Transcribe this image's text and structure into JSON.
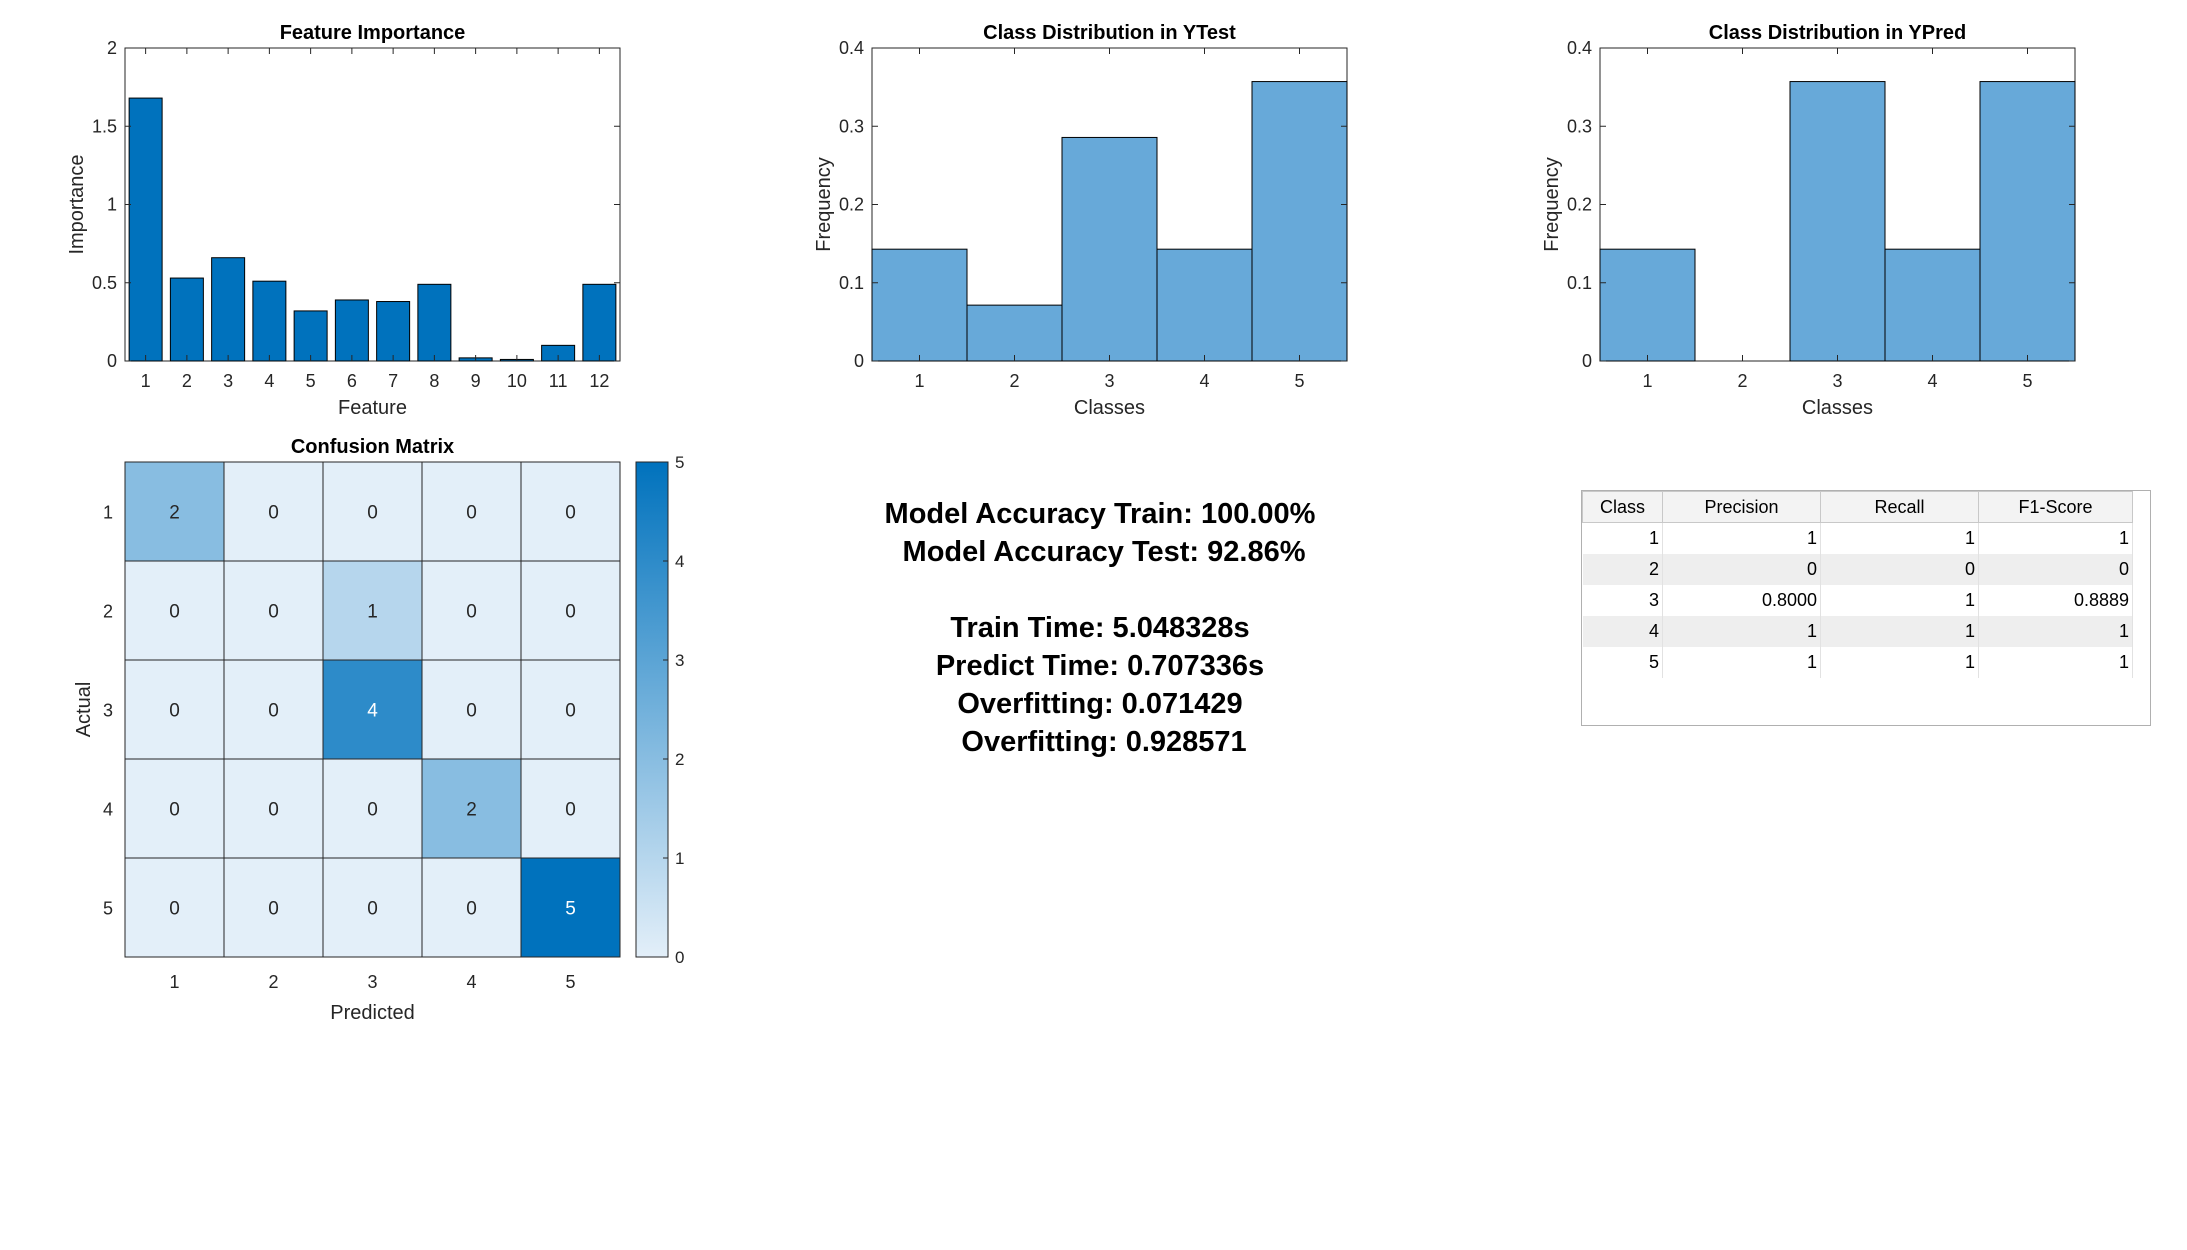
{
  "chart_data": [
    {
      "type": "bar",
      "title": "Feature Importance",
      "xlabel": "Feature",
      "ylabel": "Importance",
      "categories": [
        "1",
        "2",
        "3",
        "4",
        "5",
        "6",
        "7",
        "8",
        "9",
        "10",
        "11",
        "12"
      ],
      "values": [
        1.68,
        0.53,
        0.66,
        0.51,
        0.32,
        0.39,
        0.38,
        0.49,
        0.02,
        0.01,
        0.1,
        0.49
      ],
      "ylim": [
        0,
        2
      ],
      "yticks": [
        "0",
        "0.5",
        "1",
        "1.5",
        "2"
      ],
      "grid": false,
      "color": "#0072BD"
    },
    {
      "type": "bar",
      "title": "Class Distribution in YTest",
      "xlabel": "Classes",
      "ylabel": "Frequency",
      "categories": [
        "1",
        "2",
        "3",
        "4",
        "5"
      ],
      "values": [
        0.1429,
        0.0714,
        0.2857,
        0.1429,
        0.3571
      ],
      "ylim": [
        0,
        0.4
      ],
      "yticks": [
        "0",
        "0.1",
        "0.2",
        "0.3",
        "0.4"
      ],
      "grid": false,
      "color": "#67A9D9"
    },
    {
      "type": "bar",
      "title": "Class Distribution in YPred",
      "xlabel": "Classes",
      "ylabel": "Frequency",
      "categories": [
        "1",
        "2",
        "3",
        "4",
        "5"
      ],
      "values": [
        0.1429,
        0,
        0.3571,
        0.1429,
        0.3571
      ],
      "ylim": [
        0,
        0.4
      ],
      "yticks": [
        "0",
        "0.1",
        "0.2",
        "0.3",
        "0.4"
      ],
      "grid": false,
      "color": "#67A9D9"
    },
    {
      "type": "heatmap",
      "title": "Confusion Matrix",
      "xlabel": "Predicted",
      "ylabel": "Actual",
      "x": [
        "1",
        "2",
        "3",
        "4",
        "5"
      ],
      "y": [
        "1",
        "2",
        "3",
        "4",
        "5"
      ],
      "values": [
        [
          2,
          0,
          0,
          0,
          0
        ],
        [
          0,
          0,
          1,
          0,
          0
        ],
        [
          0,
          0,
          4,
          0,
          0
        ],
        [
          0,
          0,
          0,
          2,
          0
        ],
        [
          0,
          0,
          0,
          0,
          5
        ]
      ],
      "colorbar": {
        "range": [
          0,
          5
        ],
        "ticks": [
          "0",
          "1",
          "2",
          "3",
          "4",
          "5"
        ]
      },
      "colormap": [
        "#E3EFF9",
        "#0072BD"
      ]
    }
  ],
  "metrics": {
    "accuracy_train": "Model Accuracy Train: 100.00%",
    "accuracy_test": " Model Accuracy Test: 92.86%",
    "train_time": "Train Time: 5.048328s",
    "predict_time": "Predict Time: 0.707336s",
    "overfitting_1": "Overfitting: 0.071429",
    "overfitting_2": " Overfitting: 0.928571"
  },
  "metrics_table": {
    "columns": [
      "Class",
      "Precision",
      "Recall",
      "F1-Score"
    ],
    "rows": [
      [
        "1",
        "1",
        "1",
        "1"
      ],
      [
        "2",
        "0",
        "0",
        "0"
      ],
      [
        "3",
        "0.8000",
        "1",
        "0.8889"
      ],
      [
        "4",
        "1",
        "1",
        "1"
      ],
      [
        "5",
        "1",
        "1",
        "1"
      ]
    ]
  }
}
